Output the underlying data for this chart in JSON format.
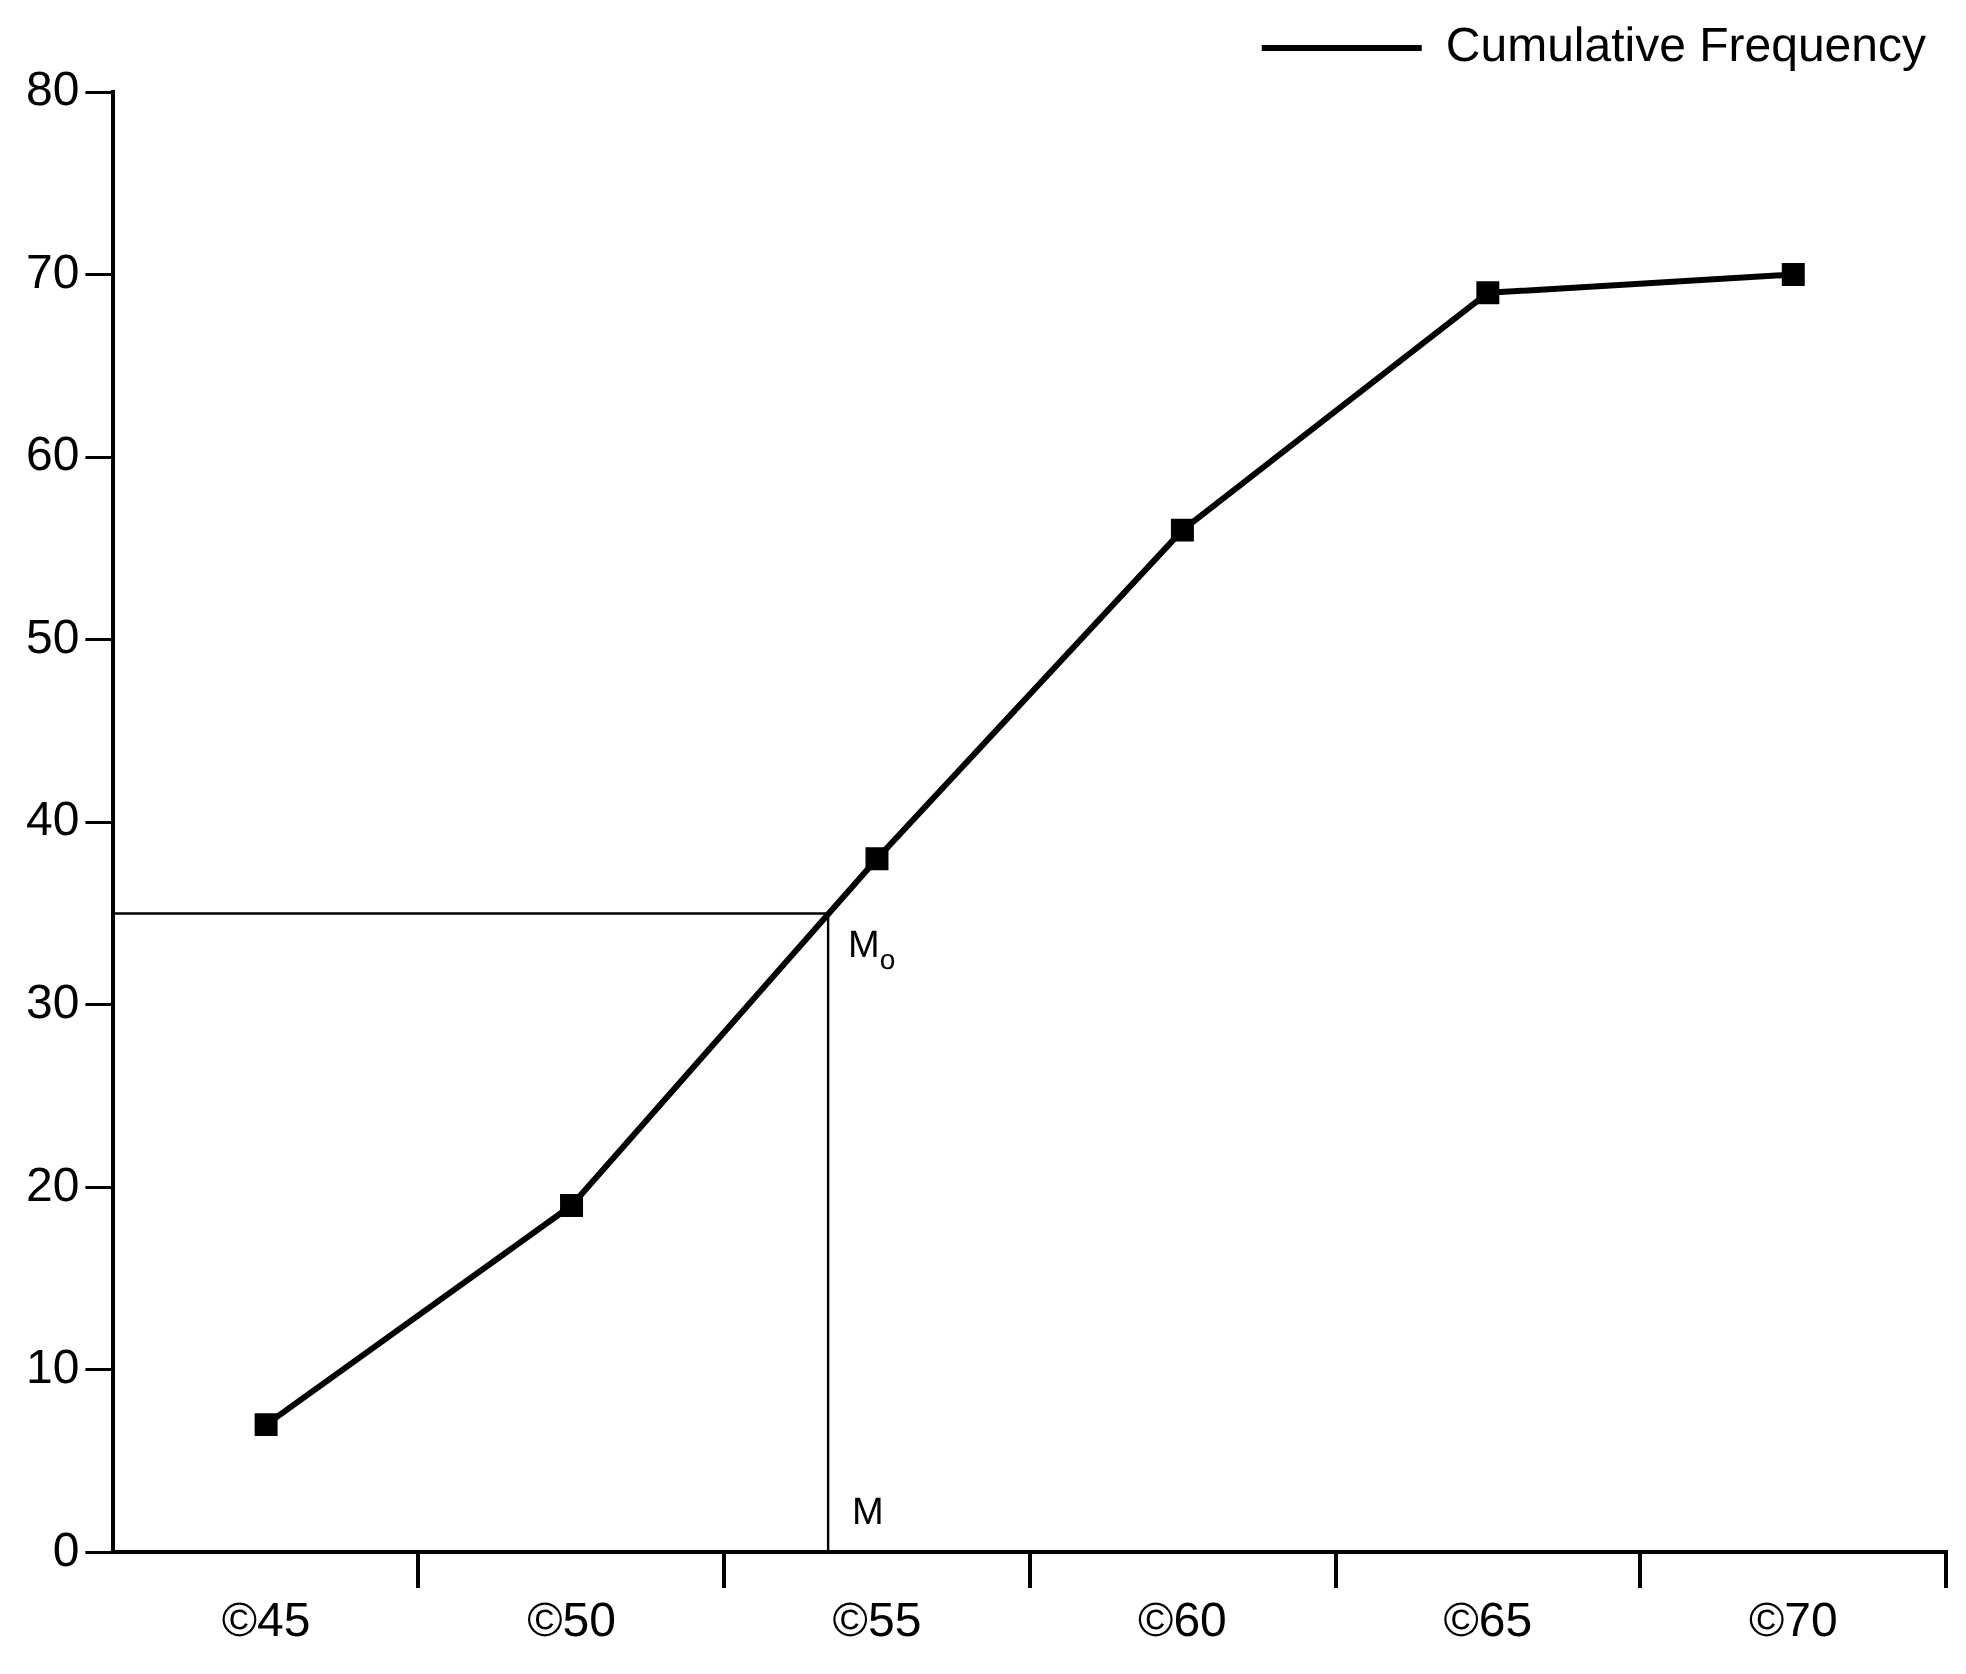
{
  "chart_data": {
    "type": "line",
    "x": [
      45,
      50,
      55,
      60,
      65,
      70
    ],
    "series": [
      {
        "name": "Cumulative Frequency",
        "color": "#000000",
        "values": [
          7,
          19,
          38,
          56,
          69,
          70
        ]
      }
    ],
    "xlim": [
      42.5,
      72.5
    ],
    "xticks": [
      {
        "value": 45,
        "label": "©45"
      },
      {
        "value": 50,
        "label": "©50"
      },
      {
        "value": 55,
        "label": "©55"
      },
      {
        "value": 60,
        "label": "©60"
      },
      {
        "value": 65,
        "label": "©65"
      },
      {
        "value": 70,
        "label": "©70"
      }
    ],
    "ylim": [
      0,
      80
    ],
    "yticks": [
      0,
      10,
      20,
      30,
      40,
      50,
      60,
      70,
      80
    ],
    "ref_lines": [
      {
        "axis": "y",
        "value": 35,
        "label": "M$_{o}$",
        "color": "#000000"
      },
      {
        "axis": "x",
        "value": 54.2,
        "label": "M",
        "color": "#000000"
      }
    ],
    "grid": false,
    "legend": "top right",
    "marker": "square",
    "line_style": "solid"
  }
}
